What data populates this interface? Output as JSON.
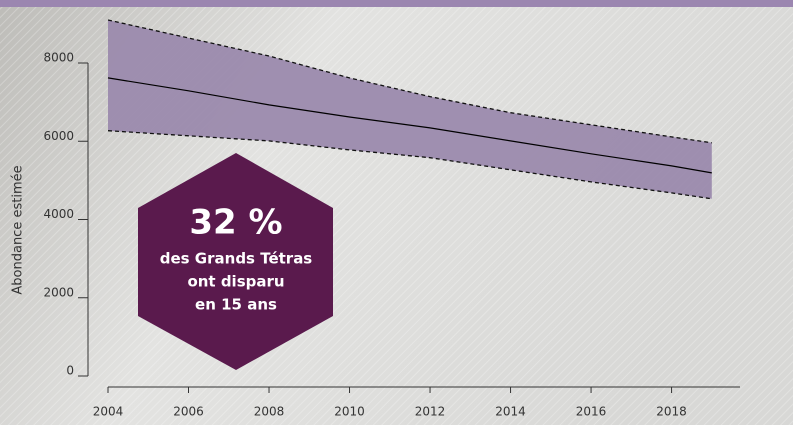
{
  "chart_data": {
    "type": "line",
    "ylabel": "Abondance estimée",
    "x": [
      2004,
      2006,
      2008,
      2010,
      2012,
      2014,
      2016,
      2018,
      2019
    ],
    "values": [
      7620,
      7290,
      6930,
      6620,
      6340,
      6010,
      5680,
      5370,
      5190
    ],
    "upper": [
      9100,
      8640,
      8180,
      7620,
      7140,
      6730,
      6420,
      6110,
      5960
    ],
    "lower": [
      6270,
      6140,
      6010,
      5780,
      5580,
      5270,
      4960,
      4680,
      4530
    ],
    "color": "#000000",
    "band_color": "#9b8aad",
    "xlim": [
      2004,
      2019.7
    ],
    "xticks": [
      2004,
      2006,
      2008,
      2010,
      2012,
      2014,
      2016,
      2018
    ],
    "ylim": [
      0,
      8000
    ],
    "yticks": [
      0,
      2000,
      4000,
      6000,
      8000
    ],
    "annotation": {
      "headline": "32 %",
      "lines": [
        "des Grands Tétras",
        "ont disparu",
        "en 15 ans"
      ]
    }
  }
}
